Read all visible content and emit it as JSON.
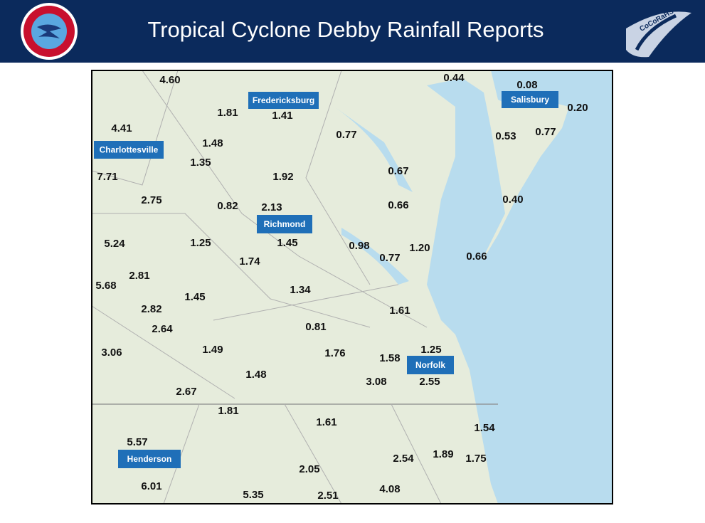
{
  "header": {
    "title": "Tropical Cyclone Debby Rainfall Reports",
    "logo_text": "CoCoRaHS"
  },
  "map": {
    "cities": [
      "Fredericksburg",
      "Salisbury",
      "Charlottesville",
      "Richmond",
      "Norfolk",
      "Henderson"
    ],
    "reports": [
      "4.60",
      "1.81",
      "1.41",
      "4.41",
      "1.48",
      "1.35",
      "7.71",
      "2.75",
      "0.82",
      "2.13",
      "1.92",
      "5.24",
      "1.25",
      "1.45",
      "1.74",
      "2.81",
      "5.68",
      "1.45",
      "1.34",
      "2.82",
      "2.64",
      "0.81",
      "1.49",
      "3.06",
      "1.76",
      "1.48",
      "2.67",
      "1.81",
      "1.61",
      "5.57",
      "2.05",
      "6.01",
      "5.35",
      "2.51",
      "0.77",
      "0.67",
      "0.66",
      "0.98",
      "0.77",
      "1.20",
      "1.61",
      "1.58",
      "1.25",
      "3.08",
      "2.55",
      "2.54",
      "1.89",
      "1.75",
      "1.54",
      "4.08",
      "0.44",
      "0.08",
      "0.20",
      "0.53",
      "0.77",
      "0.40",
      "0.66"
    ]
  }
}
